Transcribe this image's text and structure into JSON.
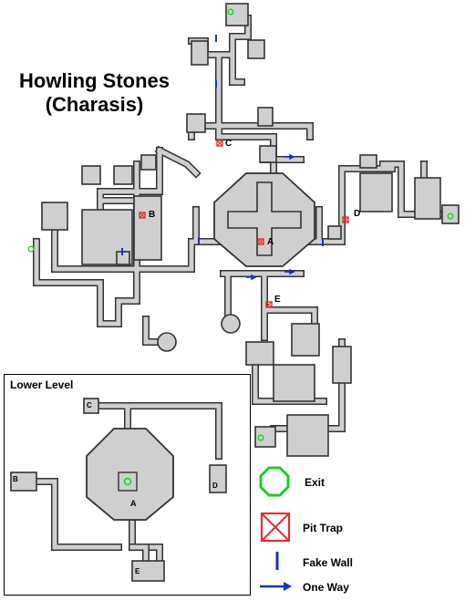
{
  "title_line1": "Howling Stones",
  "title_line2": "(Charasis)",
  "lower_level_title": "Lower Level",
  "labels": {
    "a": "A",
    "b": "B",
    "c": "C",
    "d": "D",
    "e": "E"
  },
  "lower_labels": {
    "a": "A",
    "b": "B",
    "c": "C",
    "d": "D",
    "e": "E"
  },
  "legend": {
    "exit": "Exit",
    "pit_trap": "Pit Trap",
    "fake_wall": "Fake Wall",
    "one_way": "One Way"
  },
  "colors": {
    "exit": "#22cc22",
    "pit_trap": "#e03030",
    "fake_wall": "#1a2ecc",
    "one_way": "#1a2ecc",
    "floor": "#cfcfcf",
    "wall": "#333333"
  }
}
